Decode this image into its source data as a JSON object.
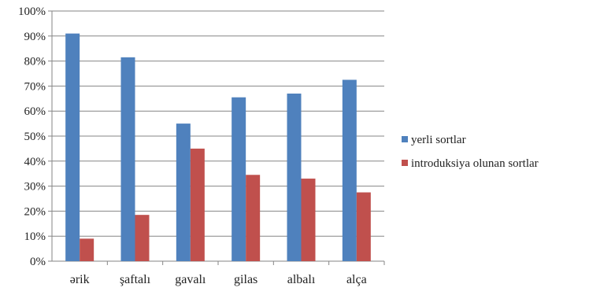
{
  "chart_data": {
    "type": "bar",
    "title": "",
    "xlabel": "",
    "ylabel": "",
    "categories": [
      "ərik",
      "şaftalı",
      "gavalı",
      "gilas",
      "albalı",
      "alça"
    ],
    "series": [
      {
        "name": "yerli sortlar",
        "color": "#4F81BD",
        "values": [
          91,
          81.5,
          55,
          65.5,
          67,
          72.5
        ]
      },
      {
        "name": "introduksiya olunan sortlar",
        "color": "#C0504D",
        "values": [
          9,
          18.5,
          45,
          34.5,
          33,
          27.5
        ]
      }
    ],
    "ylim": [
      0,
      100
    ],
    "yticks": [
      "0%",
      "10%",
      "20%",
      "30%",
      "40%",
      "50%",
      "60%",
      "70%",
      "80%",
      "90%",
      "100%"
    ],
    "grid": true,
    "legend_position": "right"
  }
}
